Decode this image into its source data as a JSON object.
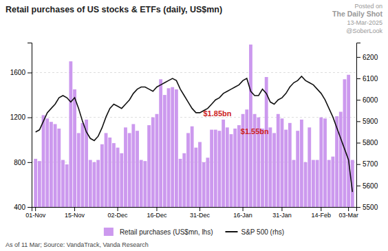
{
  "chart_data": {
    "type": "bar",
    "title": "Retail purchases of US stocks & ETFs (daily, US$mn)",
    "subtitle": [
      "Posted on",
      "The Daily Shot",
      "13-Mar-2025",
      "@SoberLook"
    ],
    "footnote": "As of 11 Mar; Source: VandaTrack, Vanda Research",
    "annotations": [
      {
        "text": "$1.85bn",
        "color": "#cc2222"
      },
      {
        "text": "$1.55bn",
        "color": "#cc2222"
      }
    ],
    "categories": [
      "01-Nov",
      null,
      null,
      null,
      null,
      null,
      null,
      null,
      null,
      null,
      "15-Nov",
      null,
      null,
      null,
      null,
      null,
      null,
      null,
      null,
      null,
      null,
      "02-Dec",
      null,
      null,
      null,
      null,
      null,
      null,
      null,
      null,
      null,
      "16-Dec",
      null,
      null,
      null,
      null,
      null,
      null,
      null,
      null,
      null,
      null,
      "31-Dec",
      null,
      null,
      null,
      null,
      null,
      null,
      null,
      null,
      null,
      null,
      "16-Jan",
      null,
      null,
      null,
      null,
      null,
      null,
      null,
      null,
      null,
      "31-Jan",
      null,
      null,
      null,
      null,
      null,
      null,
      null,
      null,
      null,
      "14-Feb",
      null,
      null,
      null,
      null,
      null,
      null,
      "03-Mar",
      null
    ],
    "series": [
      {
        "name": "Retail purchases (US$mn, lhs)",
        "type": "bar",
        "color": "#cc99ee",
        "values": [
          830,
          810,
          1220,
          1190,
          1160,
          1140,
          1100,
          820,
          780,
          1700,
          1450,
          1060,
          1150,
          1180,
          820,
          800,
          820,
          960,
          1060,
          1020,
          970,
          930,
          880,
          1110,
          1060,
          1140,
          1080,
          820,
          810,
          1130,
          1200,
          1230,
          1540,
          1400,
          1460,
          1470,
          1450,
          830,
          880,
          1060,
          1120,
          930,
          980,
          800,
          840,
          1090,
          1090,
          1080,
          1180,
          1110,
          1050,
          1100,
          1130,
          1230,
          1270,
          1850,
          1230,
          1200,
          1100,
          1560,
          1110,
          1060,
          1230,
          1190,
          1090,
          1150,
          820,
          1080,
          1180,
          800,
          1110,
          820,
          820,
          1200,
          1190,
          820,
          850,
          1210,
          1250,
          1540,
          1580,
          820
        ]
      },
      {
        "name": "S&P 500 (rhs)",
        "type": "line",
        "color": "#111111",
        "axis": "y2",
        "values": [
          5850,
          5860,
          5900,
          5940,
          5960,
          5980,
          6010,
          6020,
          6010,
          5990,
          6010,
          5960,
          5900,
          5850,
          5820,
          5810,
          5830,
          5870,
          5920,
          5960,
          5980,
          5970,
          5960,
          5980,
          6000,
          6030,
          6050,
          6060,
          6060,
          6050,
          6040,
          6060,
          6070,
          6080,
          6090,
          6100,
          6090,
          6050,
          6020,
          5990,
          5960,
          5940,
          5940,
          5950,
          5960,
          5980,
          6000,
          6010,
          6030,
          6040,
          6050,
          6060,
          6070,
          6090,
          6100,
          6040,
          6020,
          6020,
          6050,
          6030,
          5990,
          5980,
          6000,
          6010,
          6030,
          6060,
          6080,
          6090,
          6110,
          6090,
          6080,
          6070,
          6050,
          6030,
          6000,
          5960,
          5920,
          5870,
          5820,
          5770,
          5720,
          5570
        ]
      }
    ],
    "ylim": [
      400,
      1867
    ],
    "yticks": [
      400,
      800,
      1200,
      1600
    ],
    "y2lim": [
      5500,
      6267
    ],
    "y2ticks": [
      5500,
      5600,
      5700,
      5800,
      5900,
      6000,
      6100,
      6200
    ],
    "grid": true,
    "legend": "bottom"
  }
}
